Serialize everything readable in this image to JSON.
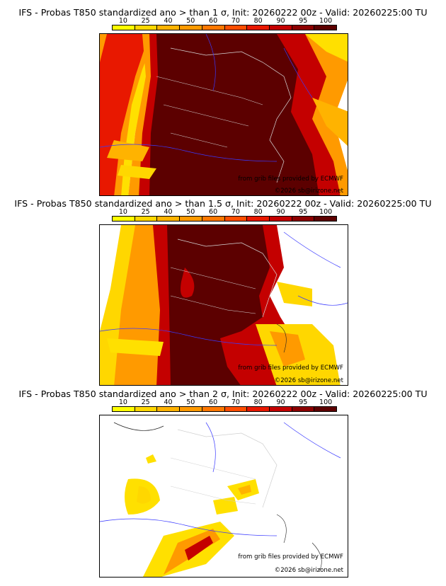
{
  "panels": [
    {
      "title": "IFS - Probas T850  standardized ano > than 1 σ, Init: 20260222 00z - Valid: 20260225:00 TU",
      "credit": "from grib files provided by ECMWF",
      "copyright": "©2026 sb@irizone.net"
    },
    {
      "title": "IFS - Probas T850  standardized ano > than 1.5 σ, Init: 20260222 00z - Valid: 20260225:00 TU",
      "credit": "from grib files provided by ECMWF",
      "copyright": "©2026 sb@irizone.net"
    },
    {
      "title": "IFS - Probas T850  standardized ano > than 2 σ, Init: 20260222 00z - Valid: 20260225:00 TU",
      "credit": "from grib files provided by ECMWF",
      "copyright": "©2026 sb@irizone.net"
    }
  ],
  "colorbar": {
    "labels": [
      "10",
      "25",
      "40",
      "50",
      "60",
      "70",
      "80",
      "90",
      "95",
      "100"
    ],
    "colors": [
      "#ffff00",
      "#ffd700",
      "#ffb300",
      "#ff9a00",
      "#ff7800",
      "#ff4e00",
      "#e81800",
      "#c40000",
      "#8c0000",
      "#5c0000"
    ]
  }
}
